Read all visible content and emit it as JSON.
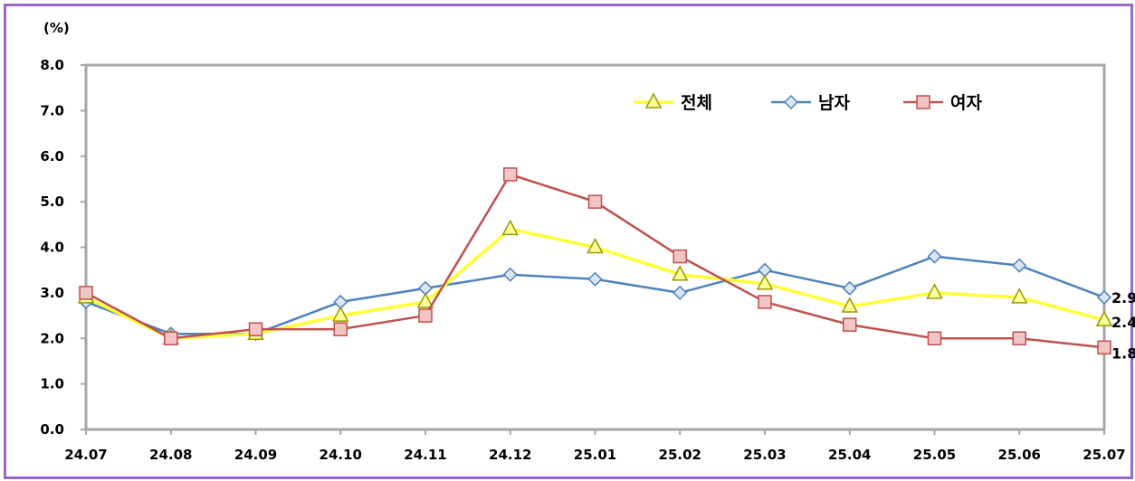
{
  "chart_data": {
    "type": "line",
    "y_unit": "(%)",
    "categories": [
      "24.07",
      "24.08",
      "24.09",
      "24.10",
      "24.11",
      "24.12",
      "25.01",
      "25.02",
      "25.03",
      "25.04",
      "25.05",
      "25.06",
      "25.07"
    ],
    "ylim": [
      0,
      8
    ],
    "yticks": [
      "0.0",
      "1.0",
      "2.0",
      "3.0",
      "4.0",
      "5.0",
      "6.0",
      "7.0",
      "8.0"
    ],
    "grid": false,
    "legend_position": "top-right",
    "series": [
      {
        "name": "전체",
        "color": "#ffff33",
        "marker": "triangle",
        "values": [
          2.9,
          2.0,
          2.1,
          2.5,
          2.8,
          4.4,
          4.0,
          3.4,
          3.2,
          2.7,
          3.0,
          2.9,
          2.4
        ],
        "end_label": "2.4"
      },
      {
        "name": "남자",
        "color": "#4f81bd",
        "marker": "diamond",
        "values": [
          2.8,
          2.1,
          2.1,
          2.8,
          3.1,
          3.4,
          3.3,
          3.0,
          3.5,
          3.1,
          3.8,
          3.6,
          2.9
        ],
        "end_label": "2.9"
      },
      {
        "name": "여자",
        "color": "#c0504d",
        "marker": "square",
        "values": [
          3.0,
          2.0,
          2.2,
          2.2,
          2.5,
          5.6,
          5.0,
          3.8,
          2.8,
          2.3,
          2.0,
          2.0,
          1.8
        ],
        "end_label": "1.8"
      }
    ]
  }
}
